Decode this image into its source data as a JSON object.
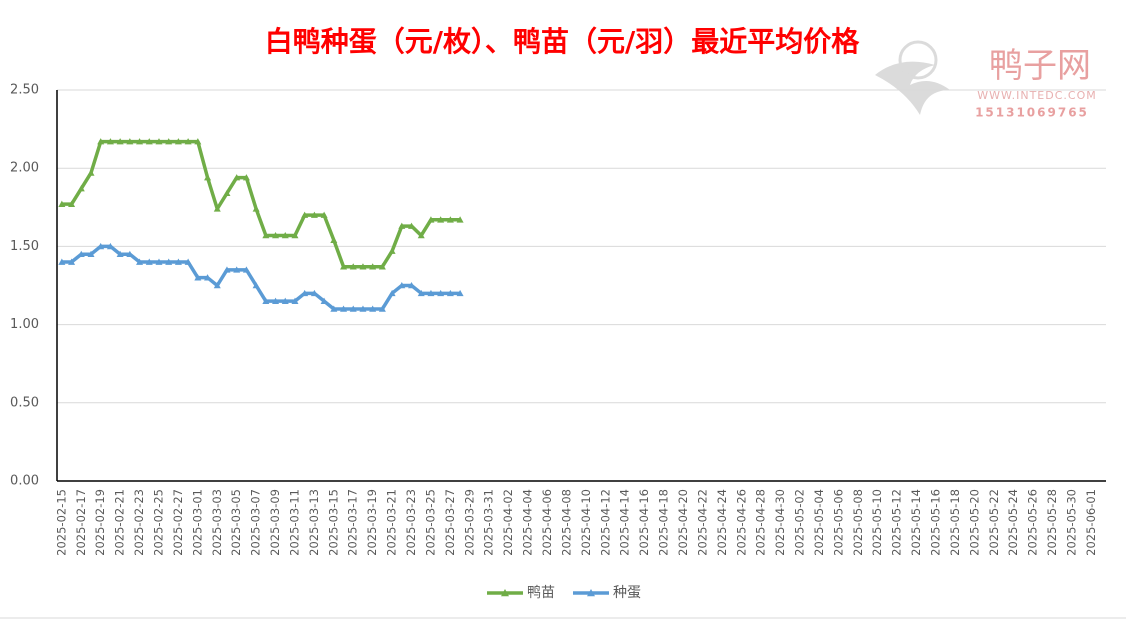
{
  "chart_data": {
    "type": "line",
    "title": "白鸭种蛋（元/枚）、鸭苗（元/羽）最近平均价格",
    "watermark": {
      "brand": "鸭子网",
      "site": "WWW.INTEDC.COM",
      "phone": "15131069765"
    },
    "categories": [
      "2025-02-15",
      null,
      "2025-02-17",
      null,
      "2025-02-19",
      null,
      "2025-02-21",
      null,
      "2025-02-23",
      null,
      "2025-02-25",
      null,
      "2025-02-27",
      null,
      "2025-03-01",
      null,
      "2025-03-03",
      null,
      "2025-03-05",
      null,
      "2025-03-07",
      null,
      "2025-03-09",
      null,
      "2025-03-11",
      null,
      "2025-03-13",
      null,
      "2025-03-15",
      null,
      "2025-03-17",
      null,
      "2025-03-19",
      null,
      "2025-03-21",
      null,
      "2025-03-23",
      null,
      "2025-03-25",
      null,
      "2025-03-27",
      null,
      "2025-03-29",
      null,
      "2025-03-31",
      null,
      "2025-04-02",
      null,
      "2025-04-04",
      null,
      "2025-04-06",
      null,
      "2025-04-08",
      null,
      "2025-04-10",
      null,
      "2025-04-12",
      null,
      "2025-04-14",
      null,
      "2025-04-16",
      null,
      "2025-04-18",
      null,
      "2025-04-20",
      null,
      "2025-04-22",
      null,
      "2025-04-24",
      null,
      "2025-04-26",
      null,
      "2025-04-28",
      null,
      "2025-04-30",
      null,
      "2025-05-02",
      null,
      "2025-05-04",
      null,
      "2025-05-06",
      null,
      "2025-05-08",
      null,
      "2025-05-10",
      null,
      "2025-05-12",
      null,
      "2025-05-14",
      null,
      "2025-05-16",
      null,
      "2025-05-18",
      null,
      "2025-05-20",
      null,
      "2025-05-22",
      null,
      "2025-05-24",
      null,
      "2025-05-26",
      null,
      "2025-05-28",
      null,
      "2025-05-30",
      null,
      "2025-06-01",
      null
    ],
    "series": [
      {
        "name": "鸭苗",
        "color": "#70ad47",
        "values": [
          1.77,
          1.77,
          1.87,
          1.97,
          2.17,
          2.17,
          2.17,
          2.17,
          2.17,
          2.17,
          2.17,
          2.17,
          2.17,
          2.17,
          2.17,
          1.94,
          1.74,
          1.84,
          1.94,
          1.94,
          1.74,
          1.57,
          1.57,
          1.57,
          1.57,
          1.7,
          1.7,
          1.7,
          1.54,
          1.37,
          1.37,
          1.37,
          1.37,
          1.37,
          1.47,
          1.63,
          1.63,
          1.57,
          1.67,
          1.67,
          1.67,
          1.67,
          null,
          null,
          null,
          null,
          null,
          null,
          null,
          null,
          null,
          null,
          null,
          null,
          null,
          null,
          null,
          null,
          null,
          null,
          null,
          null,
          null,
          null,
          null,
          null,
          null,
          null,
          null,
          null,
          null,
          null,
          null,
          null,
          null,
          null,
          null,
          null,
          null,
          null,
          null,
          null,
          null,
          null,
          null,
          null,
          null,
          null,
          null,
          null,
          null,
          null,
          null,
          null,
          null,
          null,
          null,
          null,
          null,
          null,
          null,
          null,
          null,
          null,
          null,
          null,
          null,
          null
        ]
      },
      {
        "name": "种蛋",
        "color": "#5b9bd5",
        "values": [
          1.4,
          1.4,
          1.45,
          1.45,
          1.5,
          1.5,
          1.45,
          1.45,
          1.4,
          1.4,
          1.4,
          1.4,
          1.4,
          1.4,
          1.3,
          1.3,
          1.25,
          1.35,
          1.35,
          1.35,
          1.25,
          1.15,
          1.15,
          1.15,
          1.15,
          1.2,
          1.2,
          1.15,
          1.1,
          1.1,
          1.1,
          1.1,
          1.1,
          1.1,
          1.2,
          1.25,
          1.25,
          1.2,
          1.2,
          1.2,
          1.2,
          1.2,
          null,
          null,
          null,
          null,
          null,
          null,
          null,
          null,
          null,
          null,
          null,
          null,
          null,
          null,
          null,
          null,
          null,
          null,
          null,
          null,
          null,
          null,
          null,
          null,
          null,
          null,
          null,
          null,
          null,
          null,
          null,
          null,
          null,
          null,
          null,
          null,
          null,
          null,
          null,
          null,
          null,
          null,
          null,
          null,
          null,
          null,
          null,
          null,
          null,
          null,
          null,
          null,
          null,
          null,
          null,
          null,
          null,
          null,
          null,
          null,
          null,
          null,
          null,
          null,
          null,
          null
        ]
      }
    ],
    "ylim": [
      0,
      2.5
    ],
    "yticks": [
      {
        "value": 0,
        "label": "0.00"
      },
      {
        "value": 0.5,
        "label": "0.50"
      },
      {
        "value": 1,
        "label": "1.00"
      },
      {
        "value": 1.5,
        "label": "1.50"
      },
      {
        "value": 2,
        "label": "2.00"
      },
      {
        "value": 2.5,
        "label": "2.50"
      }
    ],
    "grid": true,
    "legend": "bottom"
  }
}
